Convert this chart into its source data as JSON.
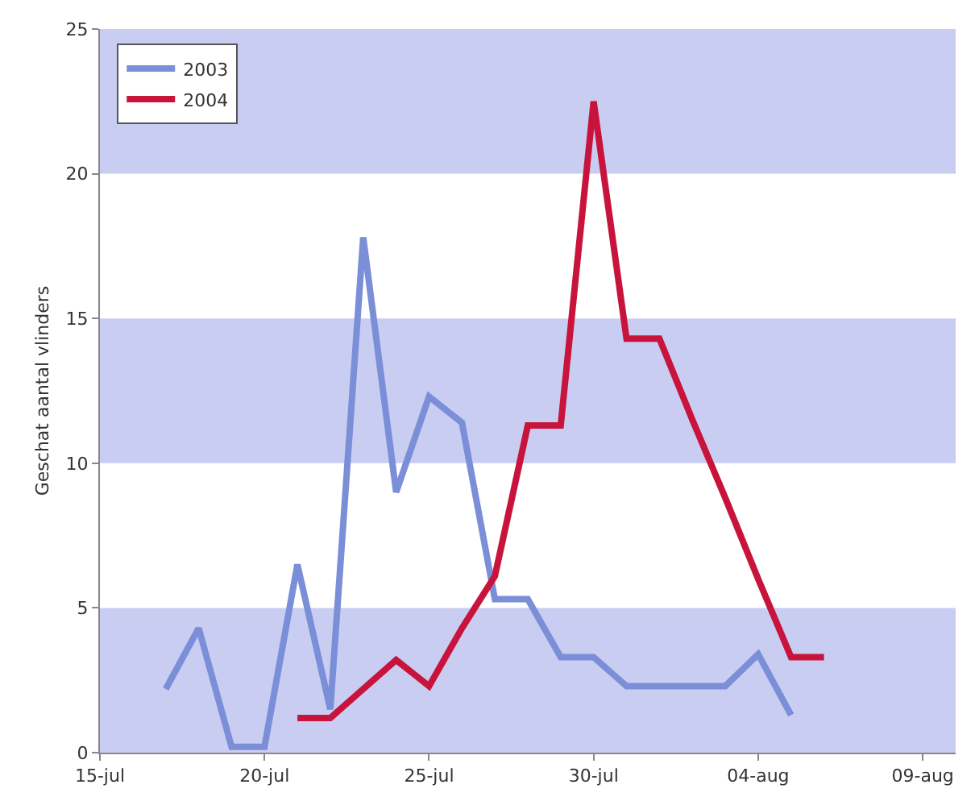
{
  "chart_data": {
    "type": "line",
    "ylabel": "Geschat aantal vlinders",
    "series": [
      {
        "name": "2003",
        "color": "#7b8ed8",
        "x": [
          "--07-17",
          "--07-18",
          "--07-19",
          "--07-20",
          "--07-21",
          "--07-22",
          "--07-23",
          "--07-24",
          "--07-25",
          "--07-26",
          "--07-27",
          "--07-28",
          "--07-29",
          "--07-30",
          "--07-31",
          "--08-01",
          "--08-02",
          "--08-03",
          "--08-04",
          "--08-05"
        ],
        "values": [
          2.2,
          4.3,
          0.2,
          0.2,
          6.5,
          1.5,
          17.8,
          9,
          12.3,
          11.4,
          5.3,
          5.3,
          3.3,
          3.3,
          2.3,
          2.3,
          2.3,
          2.3,
          3.4,
          1.3
        ]
      },
      {
        "name": "2004",
        "color": "#c8143c",
        "x": [
          "--07-21",
          "--07-22",
          "--07-23",
          "--07-24",
          "--07-25",
          "--07-26",
          "--07-27",
          "--07-28",
          "--07-29",
          "--07-30",
          "--07-31",
          "--08-01",
          "--08-02",
          "--08-03",
          "--08-04",
          "--08-05",
          "--08-06"
        ],
        "values": [
          1.2,
          1.2,
          2.2,
          3.2,
          2.3,
          4.3,
          6.1,
          11.3,
          11.3,
          22.5,
          14.3,
          14.3,
          11.5,
          8.8,
          6,
          3.3,
          3.3
        ]
      }
    ],
    "xlim": [
      "--07-15",
      "--08-10"
    ],
    "xticks": [
      {
        "value": "--07-15",
        "label": "15-jul"
      },
      {
        "value": "--07-20",
        "label": "20-jul"
      },
      {
        "value": "--07-25",
        "label": "25-jul"
      },
      {
        "value": "--07-30",
        "label": "30-jul"
      },
      {
        "value": "--08-04",
        "label": "04-aug"
      },
      {
        "value": "--08-09",
        "label": "09-aug"
      }
    ],
    "ylim": [
      0,
      25
    ],
    "yticks": [
      0,
      5,
      10,
      15,
      20,
      25
    ],
    "bands": [
      {
        "axis": "y",
        "from": 0,
        "to": 5,
        "color": "#c9cdf1"
      },
      {
        "axis": "y",
        "from": 10,
        "to": 15,
        "color": "#c9cdf1"
      },
      {
        "axis": "y",
        "from": 20,
        "to": 25,
        "color": "#c9cdf1"
      }
    ],
    "grid": false,
    "legend": "top left",
    "marker": "none",
    "line_style": "solid"
  }
}
